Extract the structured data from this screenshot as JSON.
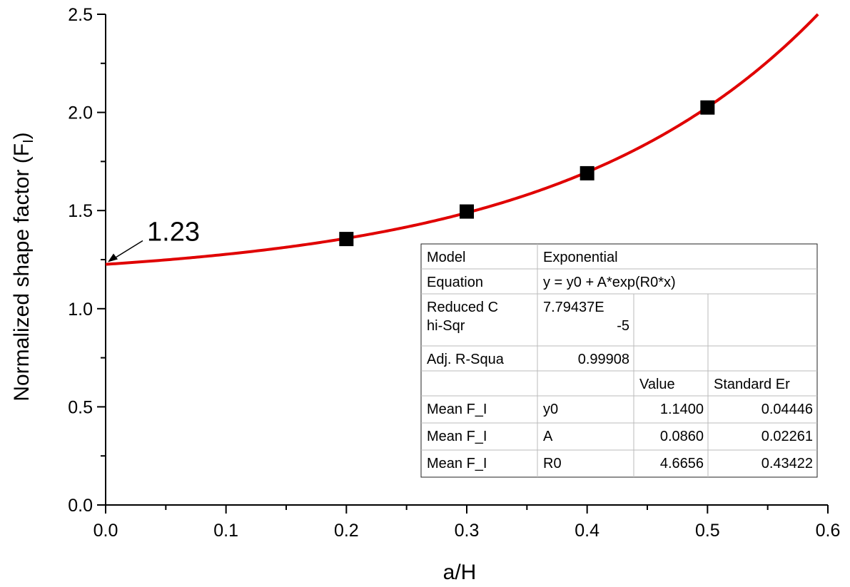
{
  "chart_data": {
    "type": "scatter",
    "xlabel": "a/H",
    "ylabel": "Normalized shape factor (F",
    "ylabel_subscript": "I",
    "ylabel_close": ")",
    "xlim": [
      0.0,
      0.6
    ],
    "ylim": [
      0.0,
      2.5
    ],
    "x_ticks": [
      "0.0",
      "0.1",
      "0.2",
      "0.3",
      "0.4",
      "0.5",
      "0.6"
    ],
    "y_ticks": [
      "0.0",
      "0.5",
      "1.0",
      "1.5",
      "2.0",
      "2.5"
    ],
    "series": [
      {
        "name": "Mean F_I",
        "x": [
          0.2,
          0.3,
          0.4,
          0.5
        ],
        "y": [
          1.355,
          1.495,
          1.69,
          2.025
        ],
        "marker": "square",
        "color": "#000000"
      }
    ],
    "fit": {
      "name": "Exponential fit",
      "color": "#e00000",
      "y0": 1.14,
      "A": 0.086,
      "R0": 4.6656
    },
    "annotation": {
      "text": "1.23",
      "x": 0.0,
      "y": 1.23
    },
    "fit_table": {
      "rows": [
        [
          "Model",
          "Exponential"
        ],
        [
          "Equation",
          "y = y0 + A*exp(R0*x)"
        ],
        [
          "Reduced C\nhi-Sqr",
          "7.79437E\n-5",
          "",
          ""
        ],
        [
          "Adj. R-Squa",
          "0.99908",
          "",
          ""
        ],
        [
          "",
          "",
          "Value",
          "Standard Er"
        ],
        [
          "Mean F_I",
          "y0",
          "1.1400",
          "0.04446"
        ],
        [
          "Mean F_I",
          "A",
          "0.0860",
          "0.02261"
        ],
        [
          "Mean F_I",
          "R0",
          "4.6656",
          "0.43422"
        ]
      ]
    }
  }
}
